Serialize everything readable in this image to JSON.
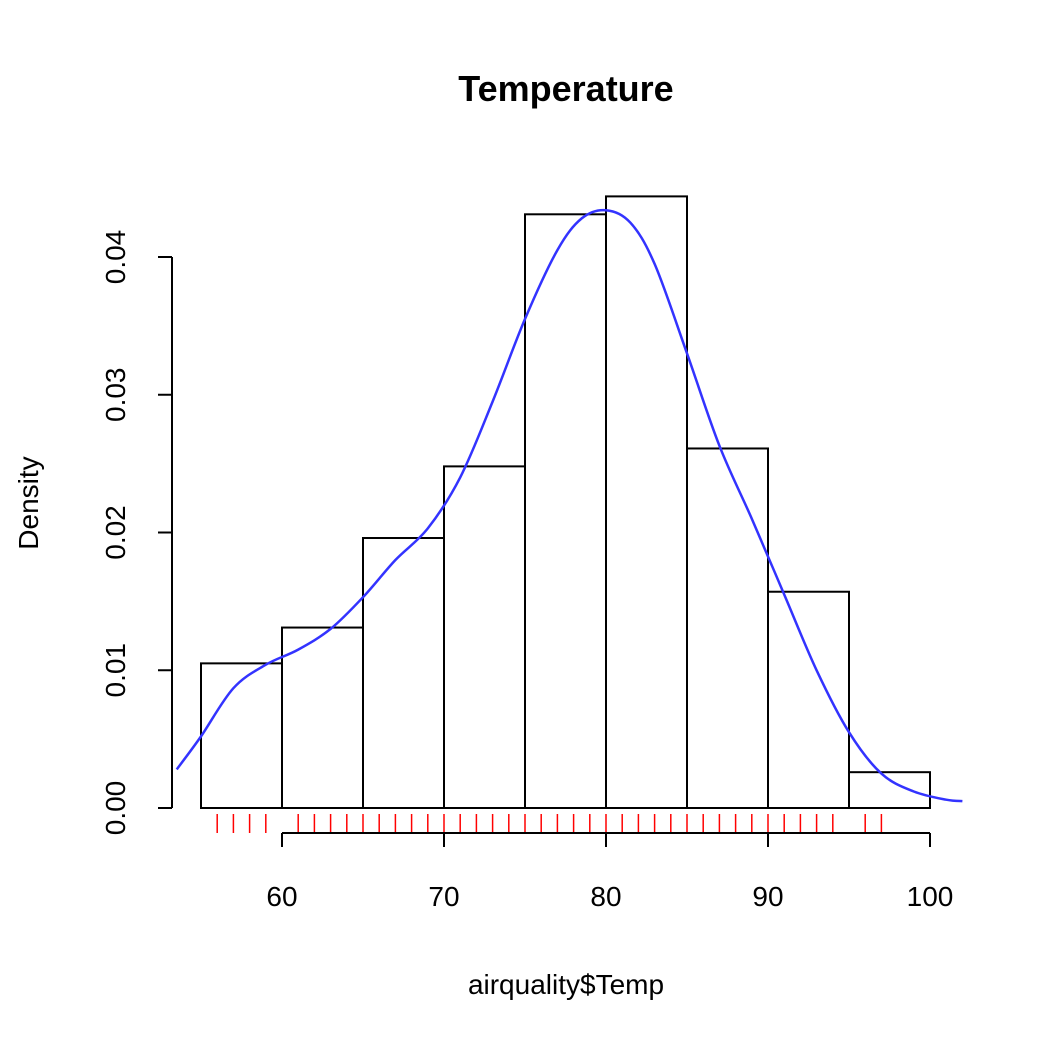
{
  "chart_data": {
    "type": "histogram",
    "title": "Temperature",
    "xlabel": "airquality$Temp",
    "ylabel": "Density",
    "xlim": [
      54,
      102
    ],
    "ylim": [
      0,
      0.045
    ],
    "x_axis": {
      "ticks": [
        60,
        70,
        80,
        90,
        100
      ],
      "tick_labels": [
        "60",
        "70",
        "80",
        "90",
        "100"
      ]
    },
    "y_axis": {
      "ticks": [
        0,
        0.01,
        0.02,
        0.03,
        0.04
      ],
      "tick_labels": [
        "0.00",
        "0.01",
        "0.02",
        "0.03",
        "0.04"
      ]
    },
    "grid": false,
    "bins": [
      {
        "from": 55,
        "to": 60,
        "density": 0.0105
      },
      {
        "from": 60,
        "to": 65,
        "density": 0.0131
      },
      {
        "from": 65,
        "to": 70,
        "density": 0.0196
      },
      {
        "from": 70,
        "to": 75,
        "density": 0.0248
      },
      {
        "from": 75,
        "to": 80,
        "density": 0.0431
      },
      {
        "from": 80,
        "to": 85,
        "density": 0.0444
      },
      {
        "from": 85,
        "to": 90,
        "density": 0.0261
      },
      {
        "from": 90,
        "to": 95,
        "density": 0.0157
      },
      {
        "from": 95,
        "to": 100,
        "density": 0.0026
      }
    ],
    "density_curve": {
      "color": "#3333ff",
      "x": [
        53.5,
        55,
        57,
        59,
        61,
        63,
        65,
        67,
        69,
        71,
        73,
        75,
        77,
        78.5,
        80,
        81.5,
        83,
        85,
        87,
        89,
        91,
        93,
        95,
        97,
        99,
        101,
        102
      ],
      "y": [
        0.0028,
        0.0052,
        0.0087,
        0.0104,
        0.0115,
        0.013,
        0.0153,
        0.018,
        0.0203,
        0.024,
        0.0295,
        0.0355,
        0.0405,
        0.0428,
        0.0434,
        0.0425,
        0.0395,
        0.033,
        0.0263,
        0.021,
        0.0155,
        0.01,
        0.0055,
        0.0025,
        0.0012,
        0.0006,
        0.0005
      ]
    },
    "rug": {
      "color": "#ff0000",
      "values": [
        56,
        57,
        58,
        59,
        61,
        62,
        63,
        64,
        65,
        66,
        67,
        68,
        69,
        70,
        71,
        72,
        73,
        74,
        75,
        76,
        77,
        78,
        79,
        80,
        81,
        82,
        83,
        84,
        85,
        86,
        87,
        88,
        89,
        90,
        91,
        92,
        93,
        94,
        96,
        97
      ]
    }
  }
}
